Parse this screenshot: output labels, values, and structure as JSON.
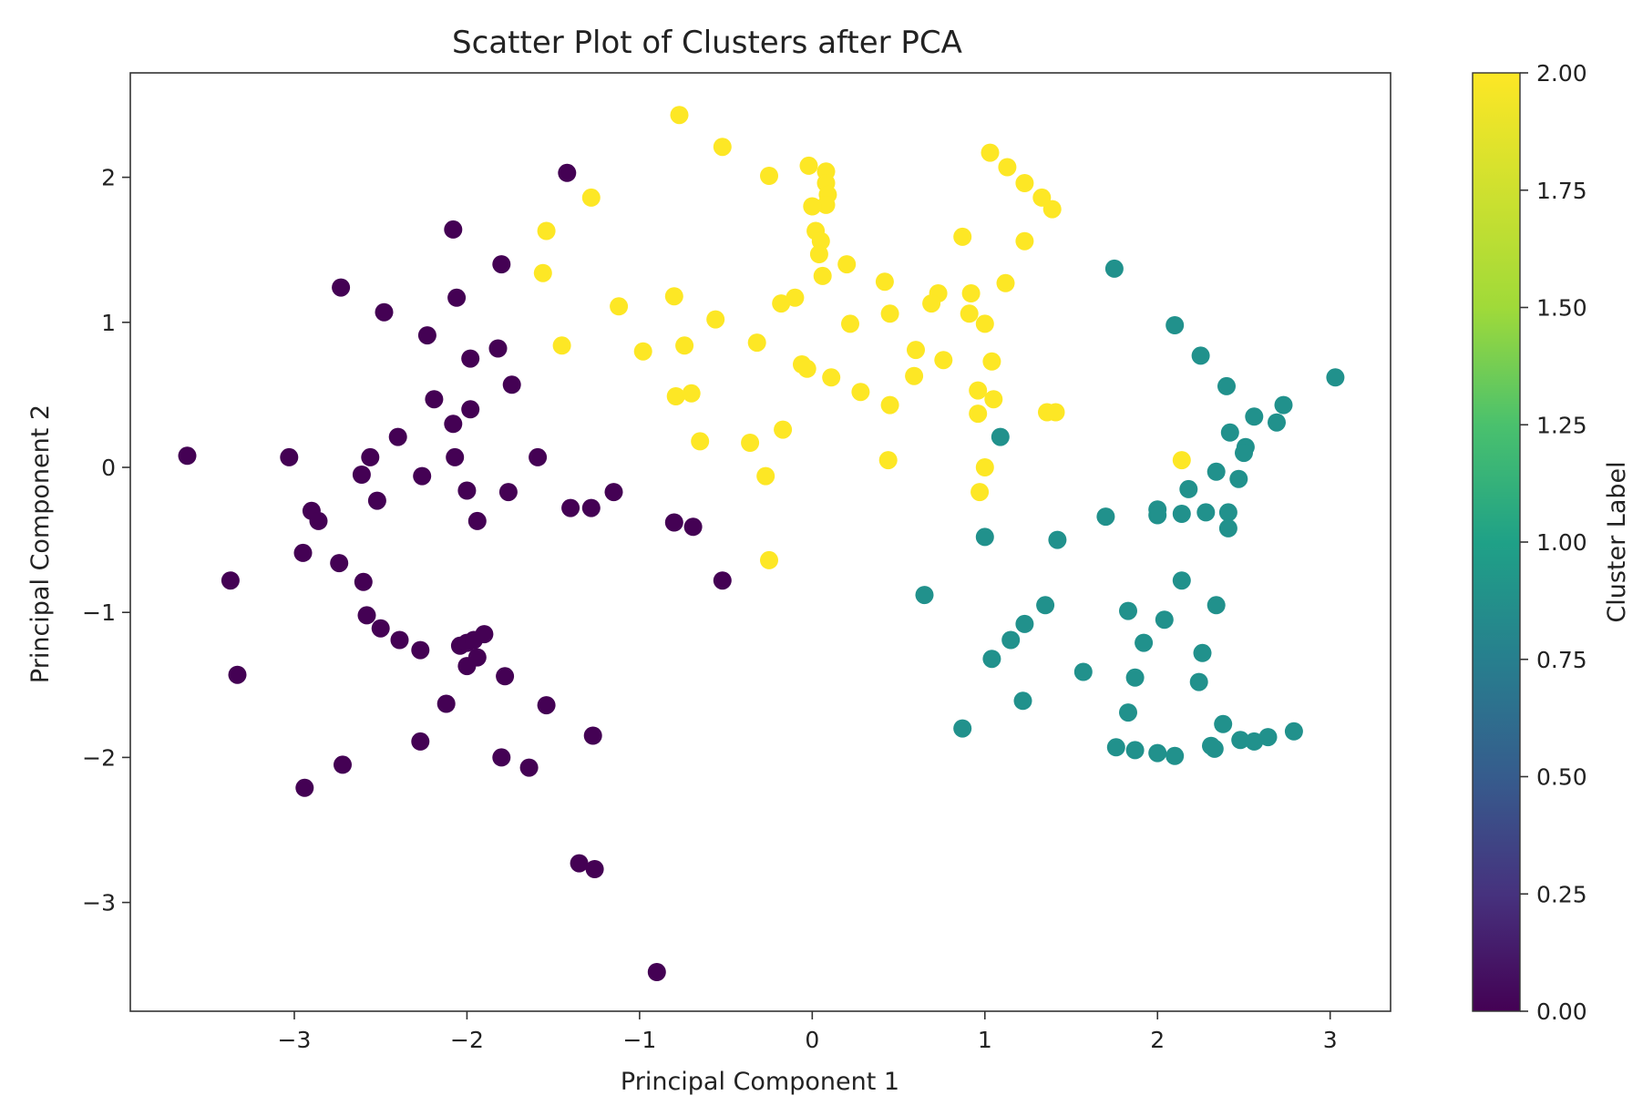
{
  "chart_data": {
    "type": "scatter",
    "title": "Scatter Plot of Clusters after PCA",
    "xlabel": "Principal Component 1",
    "ylabel": "Principal Component 2",
    "xlim": [
      -3.95,
      3.35
    ],
    "ylim": [
      -3.75,
      2.72
    ],
    "xticks": [
      -3,
      -2,
      -1,
      0,
      1,
      2,
      3
    ],
    "xtick_labels": [
      "−3",
      "−2",
      "−1",
      "0",
      "1",
      "2",
      "3"
    ],
    "yticks": [
      -3,
      -2,
      -1,
      0,
      1,
      2
    ],
    "ytick_labels": [
      "−3",
      "−2",
      "−1",
      "0",
      "1",
      "2"
    ],
    "grid": false,
    "colormap": "viridis",
    "colorbar": {
      "label": "Cluster Label",
      "range": [
        0,
        2
      ],
      "ticks": [
        0,
        0.25,
        0.5,
        0.75,
        1.0,
        1.25,
        1.5,
        1.75,
        2.0
      ],
      "tick_labels": [
        "0.00",
        "0.25",
        "0.50",
        "0.75",
        "1.00",
        "1.25",
        "1.50",
        "1.75",
        "2.00"
      ]
    },
    "cluster_colors": {
      "0": "#440154",
      "1": "#21918c",
      "2": "#fde725"
    },
    "points": [
      [
        -3.62,
        0.08,
        0
      ],
      [
        -3.03,
        0.07,
        0
      ],
      [
        -3.37,
        -0.78,
        0
      ],
      [
        -3.33,
        -1.43,
        0
      ],
      [
        -2.95,
        -0.59,
        0
      ],
      [
        -2.9,
        -0.3,
        0
      ],
      [
        -2.86,
        -0.37,
        0
      ],
      [
        -2.94,
        -2.21,
        0
      ],
      [
        -2.73,
        1.24,
        0
      ],
      [
        -2.74,
        -0.66,
        0
      ],
      [
        -2.72,
        -2.05,
        0
      ],
      [
        -2.6,
        -0.79,
        0
      ],
      [
        -2.58,
        -1.02,
        0
      ],
      [
        -2.61,
        -0.05,
        0
      ],
      [
        -2.56,
        0.07,
        0
      ],
      [
        -2.52,
        -0.23,
        0
      ],
      [
        -2.48,
        1.07,
        0
      ],
      [
        -2.5,
        -1.11,
        0
      ],
      [
        -2.4,
        0.21,
        0
      ],
      [
        -2.39,
        -1.19,
        0
      ],
      [
        -2.27,
        -1.26,
        0
      ],
      [
        -2.26,
        -0.06,
        0
      ],
      [
        -2.27,
        -1.89,
        0
      ],
      [
        -2.23,
        0.91,
        0
      ],
      [
        -2.19,
        0.47,
        0
      ],
      [
        -2.12,
        -1.63,
        0
      ],
      [
        -2.08,
        1.64,
        0
      ],
      [
        -2.07,
        0.07,
        0
      ],
      [
        -2.08,
        0.3,
        0
      ],
      [
        -2.06,
        1.17,
        0
      ],
      [
        -2.04,
        -1.23,
        0
      ],
      [
        -2.0,
        -1.21,
        0
      ],
      [
        -2.0,
        -0.16,
        0
      ],
      [
        -2.0,
        -1.37,
        0
      ],
      [
        -1.98,
        0.4,
        0
      ],
      [
        -1.98,
        0.75,
        0
      ],
      [
        -1.96,
        -1.19,
        0
      ],
      [
        -1.94,
        -1.31,
        0
      ],
      [
        -1.94,
        -0.37,
        0
      ],
      [
        -1.9,
        -1.15,
        0
      ],
      [
        -1.82,
        0.82,
        0
      ],
      [
        -1.8,
        1.4,
        0
      ],
      [
        -1.8,
        -2.0,
        0
      ],
      [
        -1.78,
        -1.44,
        0
      ],
      [
        -1.76,
        -0.17,
        0
      ],
      [
        -1.74,
        0.57,
        0
      ],
      [
        -1.64,
        -2.07,
        0
      ],
      [
        -1.59,
        0.07,
        0
      ],
      [
        -1.54,
        -1.64,
        0
      ],
      [
        -1.42,
        2.03,
        0
      ],
      [
        -1.4,
        -0.28,
        0
      ],
      [
        -1.35,
        -2.73,
        0
      ],
      [
        -1.28,
        -0.28,
        0
      ],
      [
        -1.26,
        -2.77,
        0
      ],
      [
        -1.27,
        -1.85,
        0
      ],
      [
        -1.15,
        -0.17,
        0
      ],
      [
        -0.8,
        -0.38,
        0
      ],
      [
        -0.69,
        -0.41,
        0
      ],
      [
        -0.9,
        -3.48,
        0
      ],
      [
        -0.52,
        -0.78,
        0
      ],
      [
        1.75,
        1.37,
        1
      ],
      [
        2.1,
        0.98,
        1
      ],
      [
        2.25,
        0.77,
        1
      ],
      [
        2.4,
        0.56,
        1
      ],
      [
        3.03,
        0.62,
        1
      ],
      [
        2.73,
        0.43,
        1
      ],
      [
        2.56,
        0.35,
        1
      ],
      [
        2.69,
        0.31,
        1
      ],
      [
        2.42,
        0.24,
        1
      ],
      [
        2.51,
        0.14,
        1
      ],
      [
        2.5,
        0.1,
        1
      ],
      [
        1.09,
        0.21,
        1
      ],
      [
        2.34,
        -0.03,
        1
      ],
      [
        2.47,
        -0.08,
        1
      ],
      [
        2.18,
        -0.15,
        1
      ],
      [
        2.0,
        -0.29,
        1
      ],
      [
        2.0,
        -0.33,
        1
      ],
      [
        2.14,
        -0.32,
        1
      ],
      [
        2.28,
        -0.31,
        1
      ],
      [
        2.41,
        -0.31,
        1
      ],
      [
        1.7,
        -0.34,
        1
      ],
      [
        2.41,
        -0.42,
        1
      ],
      [
        1.0,
        -0.48,
        1
      ],
      [
        1.42,
        -0.5,
        1
      ],
      [
        2.14,
        -0.78,
        1
      ],
      [
        0.65,
        -0.88,
        1
      ],
      [
        1.35,
        -0.95,
        1
      ],
      [
        2.34,
        -0.95,
        1
      ],
      [
        1.83,
        -0.99,
        1
      ],
      [
        2.04,
        -1.05,
        1
      ],
      [
        1.23,
        -1.08,
        1
      ],
      [
        1.15,
        -1.19,
        1
      ],
      [
        1.92,
        -1.21,
        1
      ],
      [
        2.26,
        -1.28,
        1
      ],
      [
        1.04,
        -1.32,
        1
      ],
      [
        1.57,
        -1.41,
        1
      ],
      [
        1.87,
        -1.45,
        1
      ],
      [
        2.24,
        -1.48,
        1
      ],
      [
        1.22,
        -1.61,
        1
      ],
      [
        1.83,
        -1.69,
        1
      ],
      [
        0.87,
        -1.8,
        1
      ],
      [
        2.38,
        -1.77,
        1
      ],
      [
        2.79,
        -1.82,
        1
      ],
      [
        2.64,
        -1.86,
        1
      ],
      [
        2.48,
        -1.88,
        1
      ],
      [
        2.56,
        -1.89,
        1
      ],
      [
        2.31,
        -1.92,
        1
      ],
      [
        2.33,
        -1.94,
        1
      ],
      [
        1.76,
        -1.93,
        1
      ],
      [
        1.87,
        -1.95,
        1
      ],
      [
        2.0,
        -1.97,
        1
      ],
      [
        2.1,
        -1.99,
        1
      ],
      [
        -0.77,
        2.43,
        2
      ],
      [
        -0.52,
        2.21,
        2
      ],
      [
        -0.25,
        2.01,
        2
      ],
      [
        -0.02,
        2.08,
        2
      ],
      [
        0.08,
        2.04,
        2
      ],
      [
        0.08,
        1.96,
        2
      ],
      [
        0.09,
        1.88,
        2
      ],
      [
        0.08,
        1.81,
        2
      ],
      [
        0.0,
        1.8,
        2
      ],
      [
        -1.28,
        1.86,
        2
      ],
      [
        -1.54,
        1.63,
        2
      ],
      [
        -1.56,
        1.34,
        2
      ],
      [
        1.03,
        2.17,
        2
      ],
      [
        1.13,
        2.07,
        2
      ],
      [
        1.23,
        1.96,
        2
      ],
      [
        1.33,
        1.86,
        2
      ],
      [
        1.39,
        1.78,
        2
      ],
      [
        0.87,
        1.59,
        2
      ],
      [
        1.23,
        1.56,
        2
      ],
      [
        0.02,
        1.63,
        2
      ],
      [
        0.05,
        1.56,
        2
      ],
      [
        0.04,
        1.47,
        2
      ],
      [
        0.2,
        1.4,
        2
      ],
      [
        0.06,
        1.32,
        2
      ],
      [
        0.42,
        1.28,
        2
      ],
      [
        1.12,
        1.27,
        2
      ],
      [
        0.73,
        1.2,
        2
      ],
      [
        0.92,
        1.2,
        2
      ],
      [
        0.69,
        1.13,
        2
      ],
      [
        -0.8,
        1.18,
        2
      ],
      [
        -1.12,
        1.11,
        2
      ],
      [
        -0.18,
        1.13,
        2
      ],
      [
        -0.1,
        1.17,
        2
      ],
      [
        0.45,
        1.06,
        2
      ],
      [
        0.91,
        1.06,
        2
      ],
      [
        -0.56,
        1.02,
        2
      ],
      [
        0.22,
        0.99,
        2
      ],
      [
        1.0,
        0.99,
        2
      ],
      [
        -0.32,
        0.86,
        2
      ],
      [
        -0.74,
        0.84,
        2
      ],
      [
        -1.45,
        0.84,
        2
      ],
      [
        -0.98,
        0.8,
        2
      ],
      [
        0.6,
        0.81,
        2
      ],
      [
        0.76,
        0.74,
        2
      ],
      [
        1.04,
        0.73,
        2
      ],
      [
        -0.06,
        0.71,
        2
      ],
      [
        -0.03,
        0.68,
        2
      ],
      [
        0.11,
        0.62,
        2
      ],
      [
        0.59,
        0.63,
        2
      ],
      [
        0.96,
        0.53,
        2
      ],
      [
        0.28,
        0.52,
        2
      ],
      [
        -0.79,
        0.49,
        2
      ],
      [
        -0.7,
        0.51,
        2
      ],
      [
        1.05,
        0.47,
        2
      ],
      [
        0.45,
        0.43,
        2
      ],
      [
        1.36,
        0.38,
        2
      ],
      [
        1.41,
        0.38,
        2
      ],
      [
        0.96,
        0.37,
        2
      ],
      [
        -0.17,
        0.26,
        2
      ],
      [
        -0.65,
        0.18,
        2
      ],
      [
        -0.36,
        0.17,
        2
      ],
      [
        0.44,
        0.05,
        2
      ],
      [
        2.14,
        0.05,
        2
      ],
      [
        1.0,
        0.0,
        2
      ],
      [
        -0.27,
        -0.06,
        2
      ],
      [
        0.97,
        -0.17,
        2
      ],
      [
        -0.25,
        -0.64,
        2
      ]
    ]
  }
}
